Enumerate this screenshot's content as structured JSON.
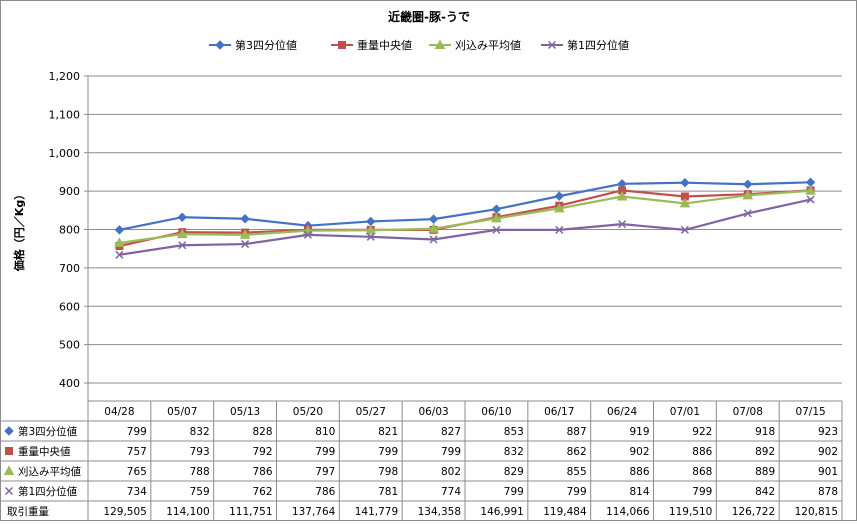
{
  "chart_data": {
    "type": "line",
    "title": "近畿圏-豚-うで",
    "ylabel": "価格（円／Kg）",
    "ylim": [
      400,
      1200
    ],
    "yticks": [
      400,
      500,
      600,
      700,
      800,
      900,
      1000,
      1100,
      1200
    ],
    "ytick_labels": [
      "400",
      "500",
      "600",
      "700",
      "800",
      "900",
      "1,000",
      "1,100",
      "1,200"
    ],
    "grid": true,
    "legend_position": "top",
    "categories": [
      "04/28",
      "05/07",
      "05/13",
      "05/20",
      "05/27",
      "06/03",
      "06/10",
      "06/17",
      "06/24",
      "07/01",
      "07/08",
      "07/15"
    ],
    "series": [
      {
        "name": "第3四分位値",
        "color": "#4472c4",
        "marker": "diamond",
        "values": [
          799,
          832,
          828,
          810,
          821,
          827,
          853,
          887,
          919,
          922,
          918,
          923
        ],
        "labels": [
          "799",
          "832",
          "828",
          "810",
          "821",
          "827",
          "853",
          "887",
          "919",
          "922",
          "918",
          "923"
        ]
      },
      {
        "name": "重量中央値",
        "color": "#c0504d",
        "marker": "square",
        "values": [
          757,
          793,
          792,
          799,
          799,
          799,
          832,
          862,
          902,
          886,
          892,
          902
        ],
        "labels": [
          "757",
          "793",
          "792",
          "799",
          "799",
          "799",
          "832",
          "862",
          "902",
          "886",
          "892",
          "902"
        ]
      },
      {
        "name": "刈込み平均値",
        "color": "#9bbb59",
        "marker": "triangle",
        "values": [
          765,
          788,
          786,
          797,
          798,
          802,
          829,
          855,
          886,
          868,
          889,
          901
        ],
        "labels": [
          "765",
          "788",
          "786",
          "797",
          "798",
          "802",
          "829",
          "855",
          "886",
          "868",
          "889",
          "901"
        ]
      },
      {
        "name": "第1四分位値",
        "color": "#8064a2",
        "marker": "x",
        "values": [
          734,
          759,
          762,
          786,
          781,
          774,
          799,
          799,
          814,
          799,
          842,
          878
        ],
        "labels": [
          "734",
          "759",
          "762",
          "786",
          "781",
          "774",
          "799",
          "799",
          "814",
          "799",
          "842",
          "878"
        ]
      }
    ],
    "volume": {
      "name": "取引重量",
      "values": [
        129505,
        114100,
        111751,
        137764,
        141779,
        134358,
        146991,
        119484,
        114066,
        119510,
        126722,
        120815
      ],
      "labels": [
        "129,505",
        "114,100",
        "111,751",
        "137,764",
        "141,779",
        "134,358",
        "146,991",
        "119,484",
        "114,066",
        "119,510",
        "126,722",
        "120,815"
      ]
    }
  }
}
